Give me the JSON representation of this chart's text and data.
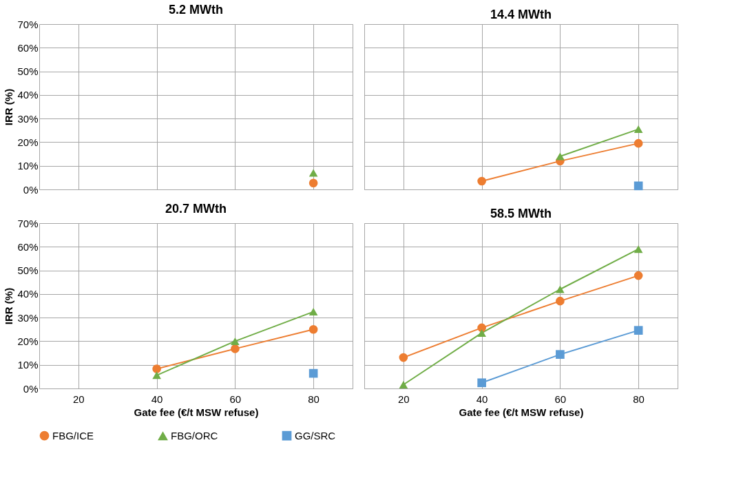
{
  "chart_data": [
    {
      "type": "line",
      "title": "5.2 MWth",
      "ylabel": "IRR (%)",
      "categories": [
        "20",
        "40",
        "60",
        "80"
      ],
      "ylim": [
        0,
        70
      ],
      "yticks": [
        {
          "value": 0,
          "label": "0%"
        },
        {
          "value": 10,
          "label": "10%"
        },
        {
          "value": 20,
          "label": "20%"
        },
        {
          "value": 30,
          "label": "30%"
        },
        {
          "value": 40,
          "label": "40%"
        },
        {
          "value": 50,
          "label": "50%"
        },
        {
          "value": 60,
          "label": "60%"
        },
        {
          "value": 70,
          "label": "70%"
        }
      ],
      "grid": true,
      "tick_labels": "y",
      "legend": "bottom",
      "series": [
        {
          "name": "FBG/ICE",
          "color": "#ed7d31",
          "marker": "circle",
          "values": [
            null,
            null,
            null,
            2.7
          ]
        },
        {
          "name": "FBG/ORC",
          "color": "#70ad47",
          "marker": "triangle",
          "values": [
            null,
            null,
            null,
            7
          ]
        }
      ]
    },
    {
      "type": "line",
      "title": "14.4 MWth",
      "categories": [
        "20",
        "40",
        "60",
        "80"
      ],
      "ylim": [
        0,
        70
      ],
      "yticks": [
        {
          "value": 0,
          "label": "0%"
        },
        {
          "value": 10,
          "label": "10%"
        },
        {
          "value": 20,
          "label": "20%"
        },
        {
          "value": 30,
          "label": "30%"
        },
        {
          "value": 40,
          "label": "40%"
        },
        {
          "value": 50,
          "label": "50%"
        },
        {
          "value": 60,
          "label": "60%"
        },
        {
          "value": 70,
          "label": "70%"
        }
      ],
      "grid": true,
      "tick_labels": false,
      "legend": "bottom",
      "series": [
        {
          "name": "FBG/ICE",
          "color": "#ed7d31",
          "marker": "circle",
          "values": [
            null,
            3.5,
            12,
            19.5
          ]
        },
        {
          "name": "FBG/ORC",
          "color": "#70ad47",
          "marker": "triangle",
          "values": [
            null,
            null,
            14,
            25.5
          ]
        },
        {
          "name": "GG/SRC",
          "color": "#5b9bd5",
          "marker": "square",
          "values": [
            null,
            null,
            null,
            1.5
          ]
        }
      ]
    },
    {
      "type": "line",
      "title": "20.7 MWth",
      "xlabel": "Gate fee (€/t MSW refuse)",
      "ylabel": "IRR (%)",
      "categories": [
        "20",
        "40",
        "60",
        "80"
      ],
      "ylim": [
        0,
        70
      ],
      "yticks": [
        {
          "value": 0,
          "label": "0%"
        },
        {
          "value": 10,
          "label": "10%"
        },
        {
          "value": 20,
          "label": "20%"
        },
        {
          "value": 30,
          "label": "30%"
        },
        {
          "value": 40,
          "label": "40%"
        },
        {
          "value": 50,
          "label": "50%"
        },
        {
          "value": 60,
          "label": "60%"
        },
        {
          "value": 70,
          "label": "70%"
        }
      ],
      "grid": true,
      "legend": "bottom",
      "series": [
        {
          "name": "FBG/ICE",
          "color": "#ed7d31",
          "marker": "circle",
          "values": [
            null,
            8.3,
            16.8,
            25
          ]
        },
        {
          "name": "FBG/ORC",
          "color": "#70ad47",
          "marker": "triangle",
          "values": [
            null,
            5.6,
            20,
            32.5
          ]
        },
        {
          "name": "GG/SRC",
          "color": "#5b9bd5",
          "marker": "square",
          "values": [
            null,
            null,
            null,
            6.4
          ]
        }
      ]
    },
    {
      "type": "line",
      "title": "58.5 MWth",
      "xlabel": "Gate fee (€/t MSW refuse)",
      "categories": [
        "20",
        "40",
        "60",
        "80"
      ],
      "ylim": [
        0,
        70
      ],
      "yticks": [
        {
          "value": 0,
          "label": "0%"
        },
        {
          "value": 10,
          "label": "10%"
        },
        {
          "value": 20,
          "label": "20%"
        },
        {
          "value": 30,
          "label": "30%"
        },
        {
          "value": 40,
          "label": "40%"
        },
        {
          "value": 50,
          "label": "50%"
        },
        {
          "value": 60,
          "label": "60%"
        },
        {
          "value": 70,
          "label": "70%"
        }
      ],
      "grid": true,
      "tick_labels": "x",
      "legend": "bottom",
      "series": [
        {
          "name": "FBG/ICE",
          "color": "#ed7d31",
          "marker": "circle",
          "values": [
            13.1,
            25.7,
            37,
            47.8
          ]
        },
        {
          "name": "FBG/ORC",
          "color": "#70ad47",
          "marker": "triangle",
          "values": [
            1.6,
            23.5,
            42,
            59
          ]
        },
        {
          "name": "GG/SRC",
          "color": "#5b9bd5",
          "marker": "square",
          "values": [
            null,
            2.4,
            14.4,
            24.6
          ]
        }
      ]
    }
  ]
}
